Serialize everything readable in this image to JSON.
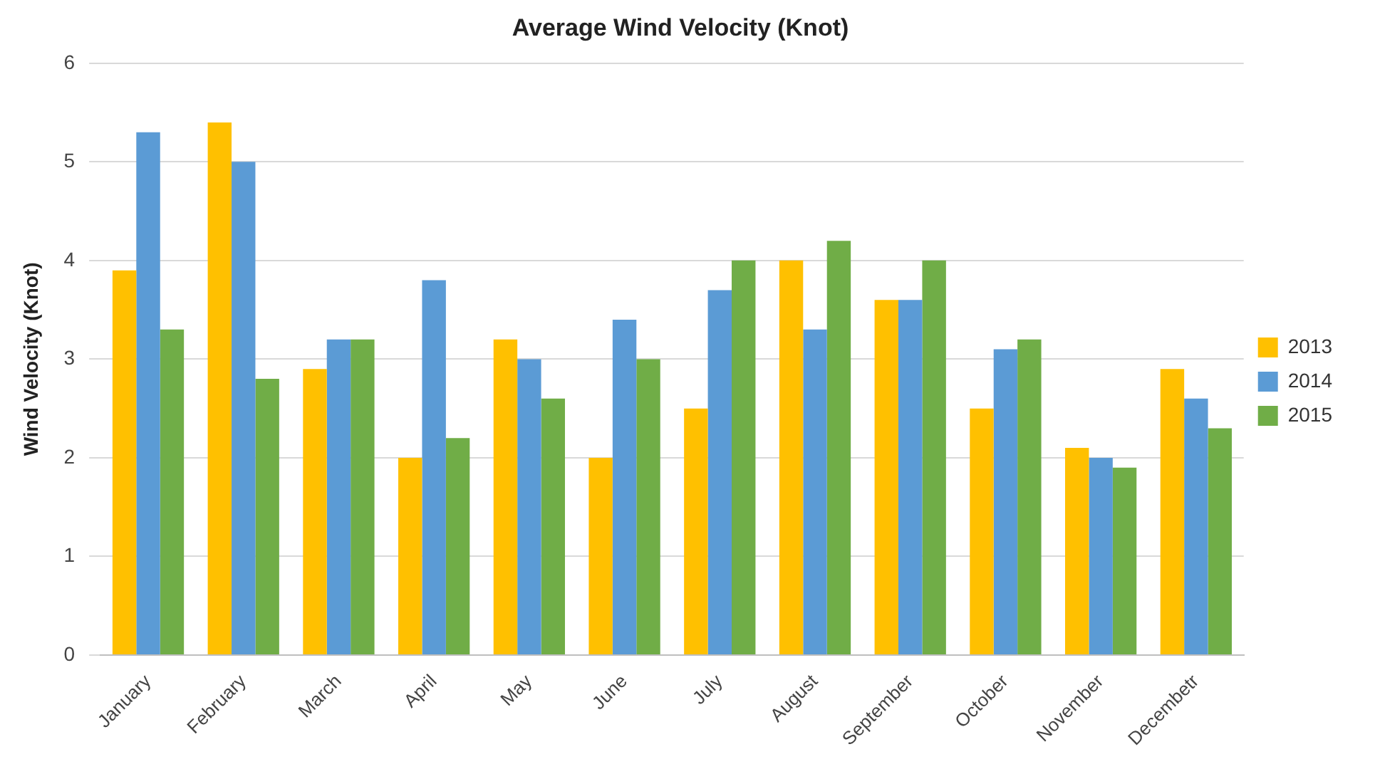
{
  "chart_data": {
    "type": "bar",
    "title": "Average Wind Velocity (Knot)",
    "ylabel": "Wind Velocity (Knot)",
    "categories": [
      "January",
      "February",
      "March",
      "April",
      "May",
      "June",
      "July",
      "August",
      "September",
      "October",
      "November",
      "Decembetr"
    ],
    "series": [
      {
        "name": "2013",
        "color": "#ffc000",
        "values": [
          3.9,
          5.4,
          2.9,
          2.0,
          3.2,
          2.0,
          2.5,
          4.0,
          3.6,
          2.5,
          2.1,
          2.9
        ]
      },
      {
        "name": "2014",
        "color": "#5b9bd5",
        "values": [
          5.3,
          5.0,
          3.2,
          3.8,
          3.0,
          3.4,
          3.7,
          3.3,
          3.6,
          3.1,
          2.0,
          2.6
        ]
      },
      {
        "name": "2015",
        "color": "#70ad47",
        "values": [
          3.3,
          2.8,
          3.2,
          2.2,
          2.6,
          3.0,
          4.0,
          4.2,
          4.0,
          3.2,
          1.9,
          2.3
        ]
      }
    ],
    "ylim": [
      0,
      6
    ],
    "yticks": [
      0,
      1,
      2,
      3,
      4,
      5,
      6
    ],
    "grid": "y",
    "legend": "right"
  }
}
